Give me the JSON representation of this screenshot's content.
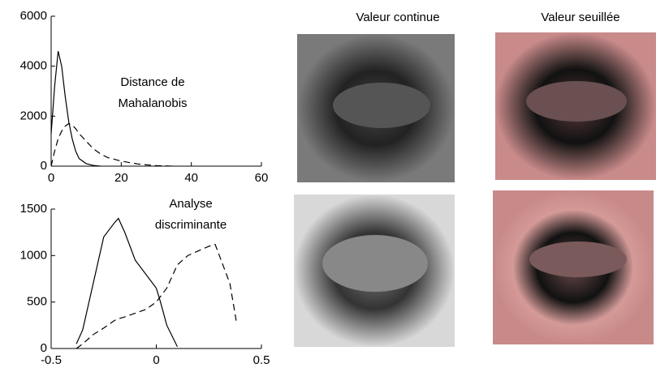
{
  "chart_data": [
    {
      "type": "line",
      "annotation": [
        "Distance de",
        "Mahalanobis"
      ],
      "x": [
        0,
        1,
        2,
        3,
        4,
        5,
        6,
        7,
        8,
        10,
        12,
        14,
        16,
        20,
        25,
        30,
        35
      ],
      "series": [
        {
          "color": "#000000",
          "dash": false,
          "values": [
            1300,
            3200,
            4600,
            4000,
            2800,
            1800,
            1100,
            600,
            300,
            100,
            30,
            0,
            null,
            null,
            null,
            null,
            null
          ]
        },
        {
          "color": "#000000",
          "dash": true,
          "values": [
            0,
            600,
            1100,
            1400,
            1600,
            1700,
            1650,
            1500,
            1300,
            1000,
            700,
            500,
            350,
            200,
            80,
            20,
            0
          ]
        }
      ],
      "xlim": [
        0,
        60
      ],
      "xticks": [
        0,
        20,
        40,
        60
      ],
      "ylim": [
        0,
        6000
      ],
      "yticks": [
        0,
        2000,
        4000,
        6000
      ]
    },
    {
      "type": "line",
      "annotation": [
        "Analyse",
        "discriminante"
      ],
      "x": [
        -0.38,
        -0.35,
        -0.3,
        -0.25,
        -0.2,
        -0.18,
        -0.15,
        -0.1,
        -0.05,
        0,
        0.02,
        0.05,
        0.1,
        0.15,
        0.2,
        0.25,
        0.28,
        0.3,
        0.35,
        0.38
      ],
      "series": [
        {
          "color": "#000000",
          "dash": false,
          "values": [
            50,
            200,
            700,
            1200,
            1350,
            1400,
            1250,
            950,
            800,
            650,
            500,
            250,
            20,
            null,
            null,
            null,
            null,
            null,
            null,
            null
          ]
        },
        {
          "color": "#000000",
          "dash": true,
          "values": [
            0,
            50,
            150,
            220,
            300,
            320,
            340,
            380,
            420,
            500,
            560,
            650,
            900,
            1000,
            1050,
            1100,
            1120,
            1000,
            700,
            300
          ]
        }
      ],
      "xlim": [
        -0.5,
        0.5
      ],
      "xticks": [
        -0.5,
        0,
        0.5
      ],
      "ylim": [
        0,
        1500
      ],
      "yticks": [
        0,
        500,
        1000,
        1500
      ]
    }
  ],
  "image_columns": [
    "Valeur continue",
    "Valeur seuillée"
  ]
}
